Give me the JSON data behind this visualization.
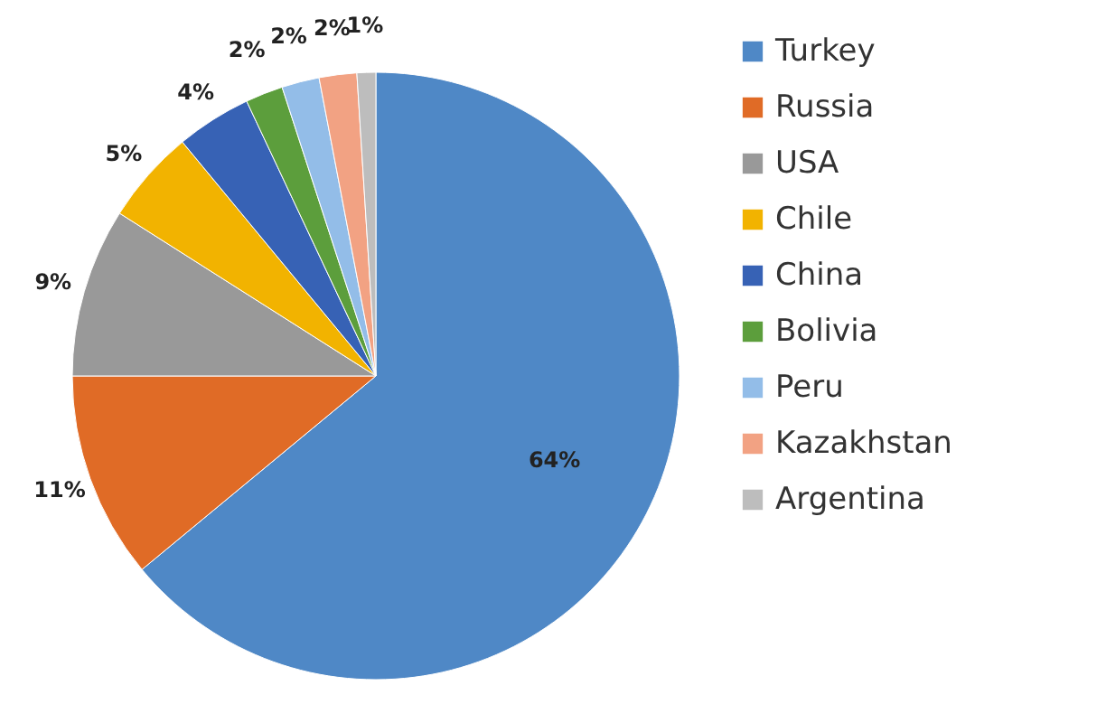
{
  "chart_data": {
    "type": "pie",
    "categories": [
      "Turkey",
      "Russia",
      "USA",
      "Chile",
      "China",
      "Bolivia",
      "Peru",
      "Kazakhstan",
      "Argentina"
    ],
    "values": [
      64,
      11,
      9,
      5,
      4,
      2,
      2,
      2,
      1
    ],
    "colors": [
      "#4f88c6",
      "#e06b26",
      "#999999",
      "#f2b300",
      "#3762b5",
      "#5c9e3c",
      "#93bde8",
      "#f2a283",
      "#bdbdbd"
    ],
    "value_labels": [
      "64%",
      "11%",
      "9%",
      "5%",
      "4%",
      "2%",
      "2%",
      "2%",
      "1%"
    ],
    "legend": "right"
  }
}
